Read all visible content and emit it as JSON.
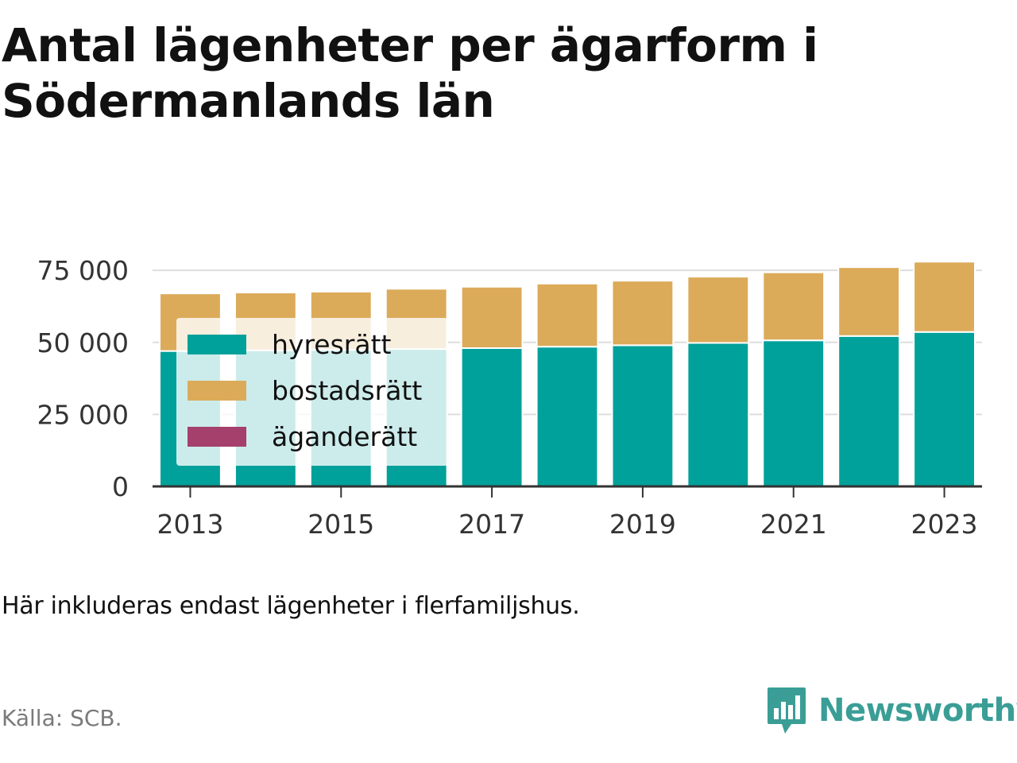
{
  "title": "Antal lägenheter per ägarform i Södermanlands län",
  "note": "Här inkluderas endast lägenheter i flerfamiljshus.",
  "source": "Källa: SCB.",
  "brand": {
    "name": "Newsworthy",
    "icon": "newsworthy-logo-icon",
    "color": "#3a9e96"
  },
  "chart_data": {
    "type": "bar",
    "stacked": true,
    "x": [
      2013,
      2014,
      2015,
      2016,
      2017,
      2018,
      2019,
      2020,
      2021,
      2022,
      2023
    ],
    "x_tick_labels": [
      "2013",
      "2015",
      "2017",
      "2019",
      "2021",
      "2023"
    ],
    "y_ticks": [
      0,
      25000,
      50000,
      75000
    ],
    "y_tick_labels": [
      "0",
      "25 000",
      "50 000",
      "75 000"
    ],
    "ylim": [
      0,
      80000
    ],
    "grid": true,
    "legend": "top-left",
    "series": [
      {
        "name": "hyresrätt",
        "color": "#00a19a",
        "values": [
          47000,
          47200,
          47400,
          47700,
          48000,
          48500,
          49000,
          49800,
          50700,
          52200,
          53600
        ]
      },
      {
        "name": "bostadsrätt",
        "color": "#dbab5a",
        "values": [
          20000,
          20100,
          20200,
          20900,
          21300,
          21900,
          22400,
          23000,
          23600,
          23900,
          24400
        ]
      },
      {
        "name": "äganderätt",
        "color": "#a53f6b",
        "values": [
          0,
          0,
          0,
          0,
          0,
          0,
          0,
          0,
          0,
          0,
          0
        ]
      }
    ]
  }
}
